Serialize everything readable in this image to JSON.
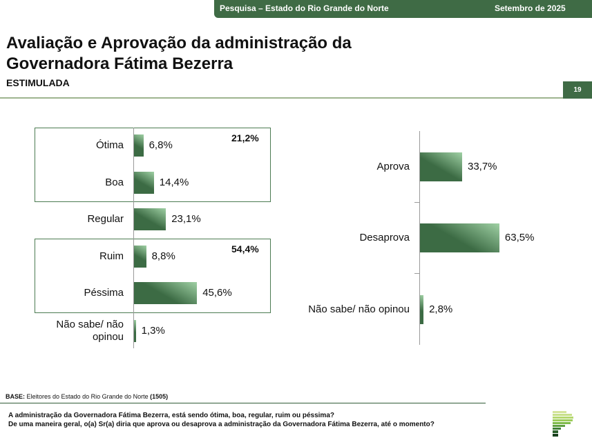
{
  "header": {
    "survey": "Pesquisa – Estado do Rio Grande do Norte",
    "date": "Setembro de 2025",
    "page": "19"
  },
  "title": "Avaliação e Aprovação da administração da Governadora Fátima Bezerra",
  "subtitle": "ESTIMULADA",
  "chart_data": [
    {
      "type": "bar",
      "orientation": "horizontal",
      "categories": [
        "Ótima",
        "Boa",
        "Regular",
        "Ruim",
        "Péssima",
        "Não sabe/ não opinou"
      ],
      "values": [
        6.8,
        14.4,
        23.1,
        8.8,
        45.6,
        1.3
      ],
      "labels": [
        "6,8%",
        "14,4%",
        "23,1%",
        "8,8%",
        "45,6%",
        "1,3%"
      ],
      "groups": [
        {
          "members": [
            "Ótima",
            "Boa"
          ],
          "total": "21,2%"
        },
        {
          "members": [
            "Ruim",
            "Péssima"
          ],
          "total": "54,4%"
        }
      ],
      "color": "#3c6b44"
    },
    {
      "type": "bar",
      "orientation": "horizontal",
      "categories": [
        "Aprova",
        "Desaprova",
        "Não sabe/ não opinou"
      ],
      "values": [
        33.7,
        63.5,
        2.8
      ],
      "labels": [
        "33,7%",
        "63,5%",
        "2,8%"
      ],
      "color": "#3c6b44"
    }
  ],
  "footer": {
    "base_label": "BASE:",
    "base_text": " Eleitores do Estado do Rio Grande do Norte ",
    "base_n": "(1505)",
    "q1": "A administração da Governadora Fátima Bezerra, está sendo ótima, boa, regular, ruim ou péssima?",
    "q2": "De uma maneira geral, o(a) Sr(a) diria que aprova ou desaprova a administração da Governadora Fátima Bezerra, até o momento?"
  }
}
